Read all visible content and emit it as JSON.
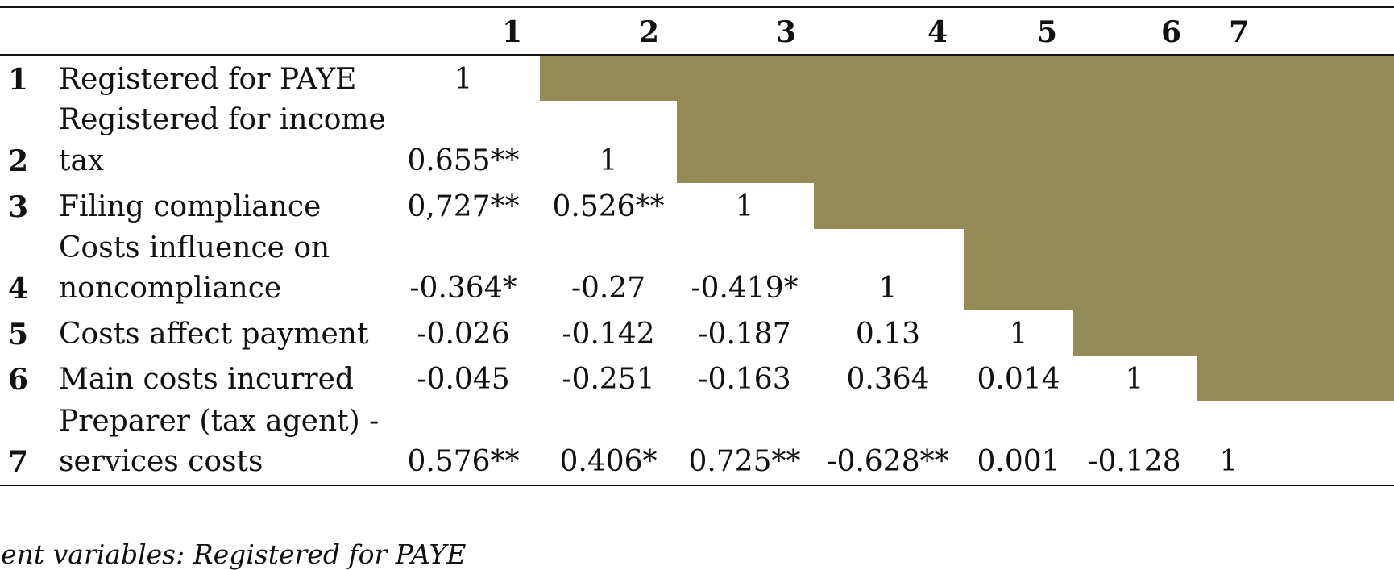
{
  "table": {
    "column_headers": [
      "1",
      "2",
      "3",
      "4",
      "5",
      "6",
      "7"
    ],
    "rows": [
      {
        "index": "1",
        "label_lines": [
          "Registered for PAYE"
        ],
        "values": [
          "1"
        ]
      },
      {
        "index": "2",
        "label_lines": [
          "Registered for income",
          "tax"
        ],
        "values": [
          "0.655**",
          "1"
        ]
      },
      {
        "index": "3",
        "label_lines": [
          "Filing compliance"
        ],
        "values": [
          "0,727**",
          "0.526**",
          "1"
        ]
      },
      {
        "index": "4",
        "label_lines": [
          "Costs influence on",
          "noncompliance"
        ],
        "values": [
          "-0.364*",
          "-0.27",
          "-0.419*",
          "1"
        ]
      },
      {
        "index": "5",
        "label_lines": [
          "Costs affect payment"
        ],
        "values": [
          "-0.026",
          "-0.142",
          "-0.187",
          "0.13",
          "1"
        ]
      },
      {
        "index": "6",
        "label_lines": [
          "Main costs incurred"
        ],
        "values": [
          "-0.045",
          "-0.251",
          "-0.163",
          "0.364",
          "0.014",
          "1"
        ]
      },
      {
        "index": "7",
        "label_lines": [
          "Preparer (tax agent) -",
          "services costs"
        ],
        "values": [
          "0.576**",
          "0.406*",
          "0.725**",
          "-0.628**",
          "0.001",
          "-0.128",
          "1"
        ]
      }
    ],
    "shade_color": "#958b56"
  },
  "footnote": "dent variables:  Registered for PAYE"
}
